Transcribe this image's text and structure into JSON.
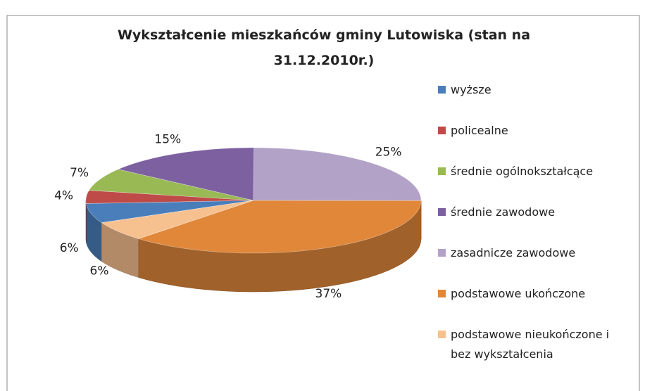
{
  "chart_data": {
    "type": "pie",
    "title": "Wykształcenie mieszkańców gminy Lutowiska (stan na 31.12.2010r.)",
    "categories": [
      "wyższe",
      "policealne",
      "średnie ogólnokształcące",
      "średnie zawodowe",
      "zasadnicze zawodowe",
      "podstawowe ukończone",
      "podstawowe nieukończone i bez wykształcenia"
    ],
    "values": [
      6,
      4,
      7,
      15,
      25,
      37,
      6
    ],
    "value_labels": [
      "6%",
      "4%",
      "7%",
      "15%",
      "25%",
      "37%",
      "6%"
    ],
    "colors": [
      "#4a7ebb",
      "#be4b48",
      "#98b954",
      "#7d60a0",
      "#b3a2c7",
      "#e0873a",
      "#f7c08f"
    ],
    "legend": "right"
  }
}
